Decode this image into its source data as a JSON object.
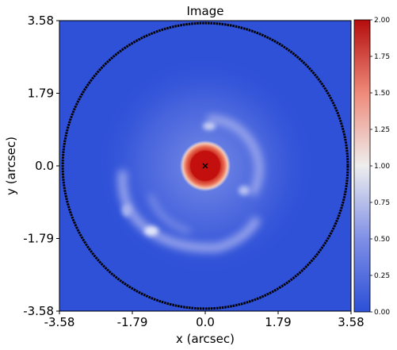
{
  "chart_data": {
    "type": "heatmap",
    "title": "Image",
    "xlabel": "x (arcsec)",
    "ylabel": "y (arcsec)",
    "xlim": [
      -3.58,
      3.58
    ],
    "ylim": [
      -3.58,
      3.58
    ],
    "x_ticks": [
      "-3.58",
      "-1.79",
      "0.0",
      "1.79",
      "3.58"
    ],
    "y_ticks": [
      "3.58",
      "1.79",
      "0.0",
      "-1.79",
      "-3.58"
    ],
    "x_tick_values": [
      -3.58,
      -1.79,
      0.0,
      1.79,
      3.58
    ],
    "y_tick_values": [
      3.58,
      1.79,
      0.0,
      -1.79,
      -3.58
    ],
    "colorbar": {
      "min": 0.0,
      "max": 2.0,
      "ticks": [
        "2.00",
        "1.75",
        "1.50",
        "1.25",
        "1.00",
        "0.75",
        "0.50",
        "0.25",
        "0.00"
      ],
      "tick_values": [
        2.0,
        1.75,
        1.5,
        1.25,
        1.0,
        0.75,
        0.5,
        0.25,
        0.0
      ],
      "colormap": "coolwarm-like",
      "low_color": "#2b4fd6",
      "mid_color": "#eeeeee",
      "high_color": "#b40d0d"
    },
    "mask_circle_radius": 3.5,
    "center_marker": [
      0.0,
      0.0
    ],
    "grid": false
  }
}
